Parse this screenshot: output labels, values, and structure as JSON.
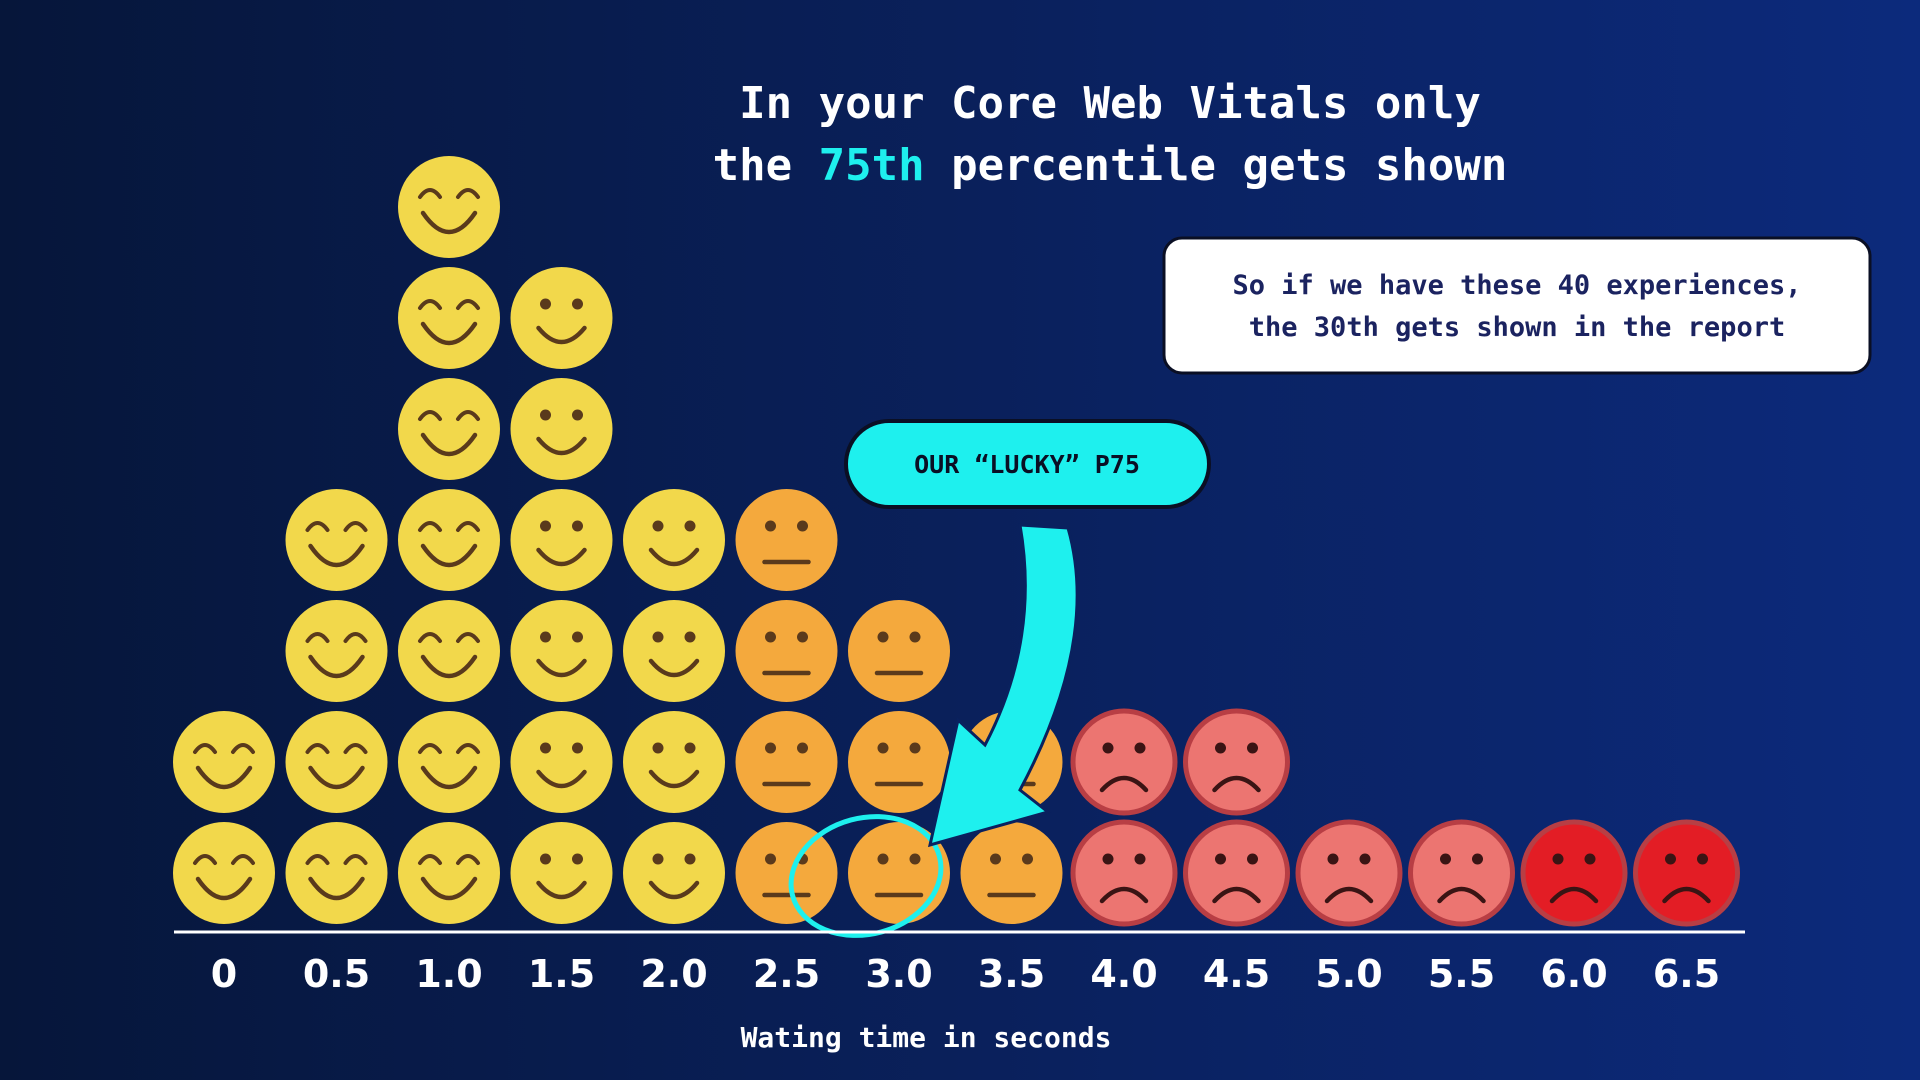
{
  "chart_data": {
    "type": "pictogram",
    "title": {
      "line1": "In your Core Web Vitals only",
      "before": "the",
      "highlight": "75th",
      "after": "percentile gets shown"
    },
    "note": [
      "So if we have these 40 experiences,",
      "the 30th gets shown in the report"
    ],
    "callout": "OUR “LUCKY” P75",
    "x_label": "Wating time in seconds",
    "categories": [
      "0",
      "0.5",
      "1.0",
      "1.5",
      "2.0",
      "2.5",
      "3.0",
      "3.5",
      "4.0",
      "4.5",
      "5.0",
      "5.5",
      "6.0",
      "6.5"
    ],
    "values": [
      2,
      4,
      7,
      6,
      4,
      4,
      3,
      2,
      2,
      2,
      1,
      1,
      1,
      1
    ],
    "faces": [
      "grin",
      "grin",
      "grin",
      "smile",
      "smile",
      "neutral",
      "neutral",
      "neutral",
      "sad",
      "sad",
      "sad",
      "sad",
      "sad",
      "sad"
    ],
    "colors": [
      "#f2d84b",
      "#f2d84b",
      "#f2d84b",
      "#f2d84b",
      "#f2d84b",
      "#f4a93d",
      "#f4a93d",
      "#f4a93d",
      "#ec7571",
      "#ec7571",
      "#ec7571",
      "#ec7571",
      "#e31d25",
      "#e31d25"
    ]
  }
}
